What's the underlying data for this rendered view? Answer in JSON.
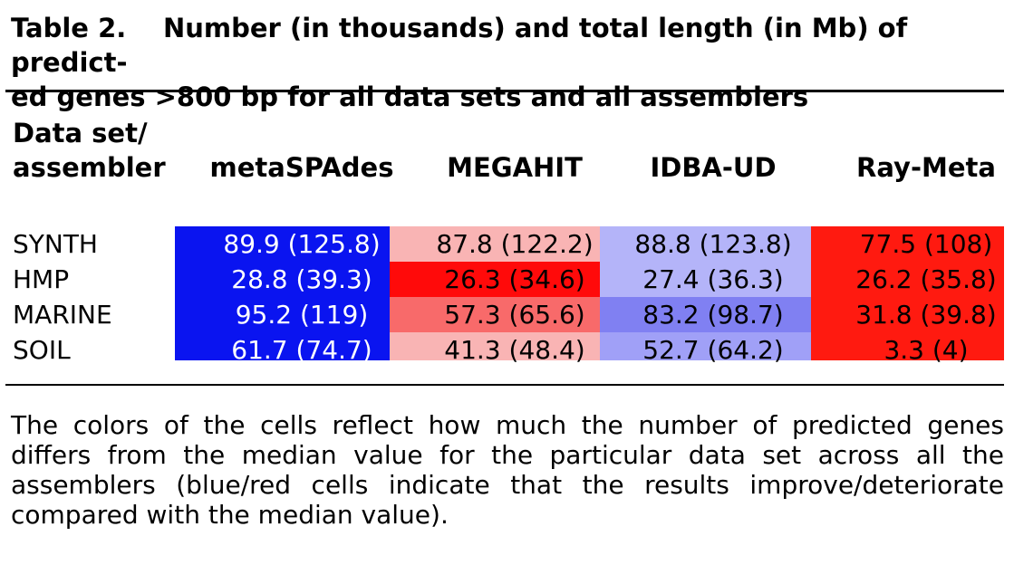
{
  "table": {
    "label": "Table 2.",
    "title_line1": "Number (in thousands) and total length (in Mb) of predict-",
    "title_line2": "ed genes >800 bp for all data sets and all assemblers",
    "header": {
      "row_label_line1": "Data set/",
      "row_label_line2": "assembler",
      "columns": [
        "metaSPAdes",
        "MEGAHIT",
        "IDBA-UD",
        "Ray-Meta"
      ]
    },
    "rows": [
      {
        "name": "SYNTH",
        "cells": [
          "89.9 (125.8)",
          "87.8 (122.2)",
          "88.8 (123.8)",
          "77.5 (108)"
        ]
      },
      {
        "name": "HMP",
        "cells": [
          "28.8 (39.3)",
          "26.3 (34.6)",
          "27.4 (36.3)",
          "26.2 (35.8)"
        ]
      },
      {
        "name": "MARINE",
        "cells": [
          "95.2 (119)",
          "57.3 (65.6)",
          "83.2 (98.7)",
          "31.8 (39.8)"
        ]
      },
      {
        "name": "SOIL",
        "cells": [
          "61.7 (74.7)",
          "41.3 (48.4)",
          "52.7 (64.2)",
          "3.3 (4)"
        ]
      }
    ],
    "cell_colors": [
      [
        "#0a14f0",
        "#f9b4b4",
        "#b4b4f9",
        "#ff1a10"
      ],
      [
        "#0a14f0",
        "#ff0a0a",
        "#b4b4f9",
        "#ff1a10"
      ],
      [
        "#0a14f0",
        "#f86a6a",
        "#8080f2",
        "#ff1a10"
      ],
      [
        "#0a14f0",
        "#f9b4b4",
        "#a0a0f7",
        "#ff1a10"
      ]
    ],
    "cell_text_colors": [
      [
        "#ffffff",
        "#000000",
        "#000000",
        "#000000"
      ],
      [
        "#ffffff",
        "#000000",
        "#000000",
        "#000000"
      ],
      [
        "#ffffff",
        "#000000",
        "#000000",
        "#000000"
      ],
      [
        "#ffffff",
        "#000000",
        "#000000",
        "#000000"
      ]
    ]
  },
  "footnote": "The colors of the cells reflect how much the number of predicted genes differs from the median value for the particular data set across all the assemblers (blue/red cells indicate that the results improve/deteriorate compared with the median value)."
}
